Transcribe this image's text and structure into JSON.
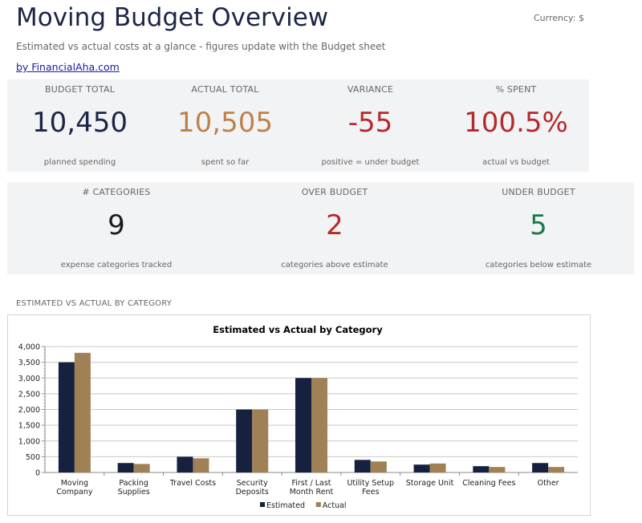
{
  "header": {
    "title": "Moving Budget Overview",
    "currency": "Currency: $",
    "subtitle": "Estimated vs actual costs at a glance - figures update with the Budget sheet",
    "credit": "by FinancialAha.com"
  },
  "kpis_row1": [
    {
      "label": "BUDGET TOTAL",
      "value": "10,450",
      "caption": "planned spending",
      "color": "#1b2546"
    },
    {
      "label": "ACTUAL TOTAL",
      "value": "10,505",
      "caption": "spent so far",
      "color": "#c0804a"
    },
    {
      "label": "VARIANCE",
      "value": "-55",
      "caption": "positive = under budget",
      "color": "#b52a2a"
    },
    {
      "label": "% SPENT",
      "value": "100.5%",
      "caption": "actual vs budget",
      "color": "#b52a2a"
    }
  ],
  "kpis_row2": [
    {
      "label": "# CATEGORIES",
      "value": "9",
      "caption": "expense categories tracked",
      "color": "#1a1a1a"
    },
    {
      "label": "OVER BUDGET",
      "value": "2",
      "caption": "categories above estimate",
      "color": "#b52a2a"
    },
    {
      "label": "UNDER BUDGET",
      "value": "5",
      "caption": "categories below estimate",
      "color": "#1a7a4a"
    }
  ],
  "section": {
    "heading": "ESTIMATED VS ACTUAL BY CATEGORY"
  },
  "chart_data": {
    "type": "bar",
    "title": "Estimated vs Actual by Category",
    "categories": [
      [
        "Moving",
        "Company"
      ],
      [
        "Packing",
        "Supplies"
      ],
      [
        "Travel Costs"
      ],
      [
        "Security",
        "Deposits"
      ],
      [
        "First / Last",
        "Month Rent"
      ],
      [
        "Utility Setup",
        "Fees"
      ],
      [
        "Storage Unit"
      ],
      [
        "Cleaning Fees"
      ],
      [
        "Other"
      ]
    ],
    "series": [
      {
        "name": "Estimated",
        "color": "#16213f",
        "values": [
          3500,
          300,
          500,
          2000,
          3000,
          400,
          250,
          200,
          300
        ]
      },
      {
        "name": "Actual",
        "color": "#a08155",
        "values": [
          3800,
          270,
          450,
          2000,
          3000,
          350,
          285,
          175,
          175
        ]
      }
    ],
    "yticks": [
      "0",
      "500",
      "1,000",
      "1,500",
      "2,000",
      "2,500",
      "3,000",
      "3,500",
      "4,000"
    ],
    "ylim": [
      0,
      4000
    ],
    "grid": true,
    "legend": "bottom"
  }
}
